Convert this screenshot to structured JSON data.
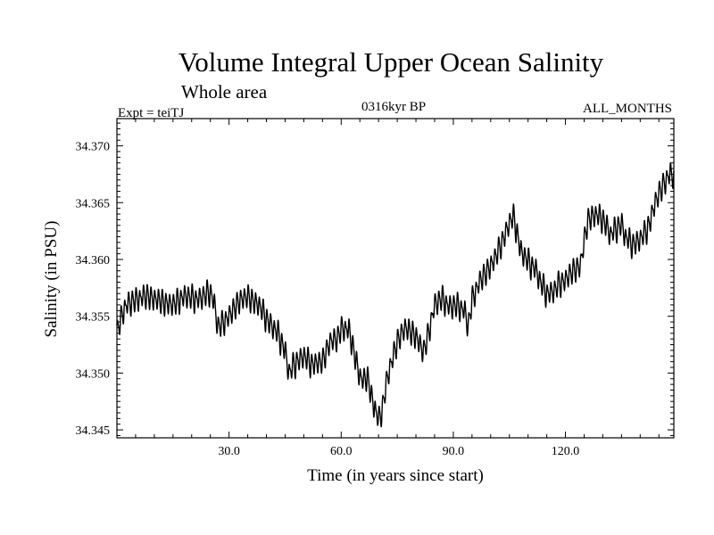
{
  "chart_data": {
    "type": "line",
    "title": "Volume Integral Upper Ocean Salinity",
    "subtitle": "Whole area",
    "experiment": "Expt = teiTJ",
    "period": "0316kyr BP",
    "months": "ALL_MONTHS",
    "xlabel": "Time (in years since start)",
    "ylabel": "Salinity (in PSU)",
    "xlim": [
      0,
      149
    ],
    "ylim": [
      34.3443,
      34.3724
    ],
    "x_ticks": [
      30,
      60,
      90,
      120
    ],
    "x_tick_labels": [
      "30.0",
      "60.0",
      "90.0",
      "120.0"
    ],
    "y_ticks": [
      34.345,
      34.35,
      34.355,
      34.36,
      34.365,
      34.37
    ],
    "y_tick_labels": [
      "34.345",
      "34.350",
      "34.355",
      "34.360",
      "34.365",
      "34.370"
    ],
    "grid": false,
    "series": [
      {
        "name": "salinity",
        "color": "#000000",
        "seasonal_amplitude": 0.0011,
        "sampling_per_year": 12,
        "x": [
          0,
          2,
          5,
          8,
          12,
          15,
          18,
          22,
          25,
          26,
          27,
          30,
          33,
          35,
          38,
          40,
          43,
          45,
          46,
          48,
          50,
          52,
          55,
          57,
          59,
          60,
          62,
          63,
          64,
          65,
          66,
          67,
          68,
          69,
          70,
          71,
          72,
          73,
          74,
          75,
          77,
          80,
          82,
          83,
          85,
          87,
          89,
          91,
          93,
          94,
          95,
          97,
          99,
          101,
          103,
          105,
          106,
          107,
          108,
          110,
          112,
          113,
          115,
          117,
          118,
          120,
          122,
          124,
          125,
          126,
          128,
          130,
          131,
          132,
          133,
          135,
          136,
          138,
          140,
          142,
          144,
          146,
          148,
          149
        ],
        "y": [
          34.3536,
          34.3558,
          34.3565,
          34.3568,
          34.3563,
          34.356,
          34.3568,
          34.3565,
          34.3572,
          34.3562,
          34.354,
          34.355,
          34.3565,
          34.3567,
          34.356,
          34.3548,
          34.3535,
          34.352,
          34.35,
          34.351,
          34.3515,
          34.3508,
          34.351,
          34.3528,
          34.353,
          34.354,
          34.3538,
          34.3525,
          34.351,
          34.3498,
          34.3492,
          34.3498,
          34.348,
          34.347,
          34.3458,
          34.3468,
          34.349,
          34.3505,
          34.3515,
          34.3528,
          34.354,
          34.3533,
          34.3518,
          34.353,
          34.356,
          34.3566,
          34.3558,
          34.356,
          34.3555,
          34.354,
          34.3565,
          34.358,
          34.359,
          34.36,
          34.3615,
          34.3632,
          34.3638,
          34.3625,
          34.3608,
          34.3598,
          34.3592,
          34.3582,
          34.357,
          34.3572,
          34.3578,
          34.3582,
          34.359,
          34.3595,
          34.3615,
          34.3635,
          34.364,
          34.3635,
          34.363,
          34.3622,
          34.3625,
          34.3632,
          34.362,
          34.3613,
          34.3618,
          34.3627,
          34.365,
          34.3665,
          34.3676,
          34.3672
        ]
      }
    ]
  }
}
